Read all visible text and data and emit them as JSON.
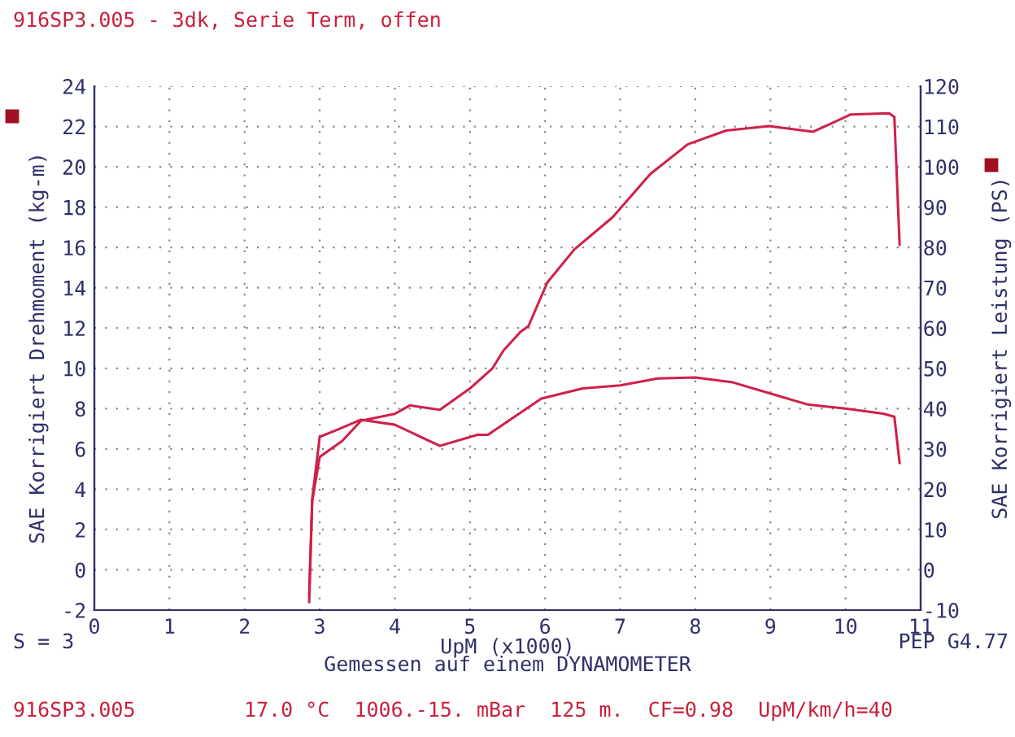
{
  "chart_data": {
    "type": "line",
    "title": "916SP3.005 - 3dk, Serie Term, offen",
    "xlabel": "UpM (x1000)",
    "ylabel": "SAE Korrigiert Drehmoment (kg-m)",
    "y2label": "SAE Korrigiert Leistung (PS)",
    "series": [
      {
        "color": "#d0204a",
        "x": [
          2.86,
          2.9,
          3.0,
          3.2,
          3.55,
          4.0,
          4.6,
          5.1,
          5.24,
          5.95,
          6.5,
          7.0,
          7.5,
          8.0,
          8.5,
          9.0,
          9.5,
          10.0,
          10.5,
          10.65,
          10.72
        ],
        "values": [
          -1.2,
          3.5,
          6.6,
          6.9,
          7.45,
          7.2,
          6.15,
          6.7,
          6.7,
          8.5,
          9.0,
          9.15,
          9.5,
          9.55,
          9.3,
          8.75,
          8.2,
          8.0,
          7.75,
          7.6,
          5.3
        ]
      },
      {
        "color": "#d0204a",
        "axis": "y2",
        "x": [
          2.86,
          2.9,
          3.0,
          3.3,
          3.55,
          4.0,
          4.2,
          4.6,
          5.0,
          5.3,
          5.45,
          5.67,
          5.78,
          6.03,
          6.39,
          6.9,
          7.4,
          7.9,
          8.41,
          8.98,
          9.57,
          10.07,
          10.58,
          10.65,
          10.72
        ],
        "values": [
          -8,
          17,
          28,
          32,
          37,
          38.7,
          40.8,
          39.7,
          45,
          50,
          54.5,
          59,
          60.5,
          71.3,
          79.5,
          87.5,
          98.2,
          105.6,
          109,
          110.1,
          108.7,
          113,
          113.3,
          112.4,
          80.7
        ]
      }
    ],
    "xlim": [
      0,
      11
    ],
    "xticks": [
      0,
      1,
      2,
      3,
      4,
      5,
      6,
      7,
      8,
      9,
      10,
      11
    ],
    "ylim": [
      -2,
      24
    ],
    "yticks": [
      -2,
      0,
      2,
      4,
      6,
      8,
      10,
      12,
      14,
      16,
      18,
      20,
      22,
      24
    ],
    "y2lim": [
      -10,
      120
    ],
    "y2ticks": [
      -10,
      0,
      10,
      20,
      30,
      40,
      50,
      60,
      70,
      80,
      90,
      100,
      110,
      120
    ],
    "grid": true,
    "line_style": "solid",
    "marker": "none",
    "annotations": [
      "S = 3",
      "PEP G4.77",
      "Gemessen auf einem DYNAMOMETER",
      "916SP3.005",
      "17.0 °C  1006.-15. mBar  125 m.  CF=0.98  UpM/km/h=40"
    ]
  }
}
